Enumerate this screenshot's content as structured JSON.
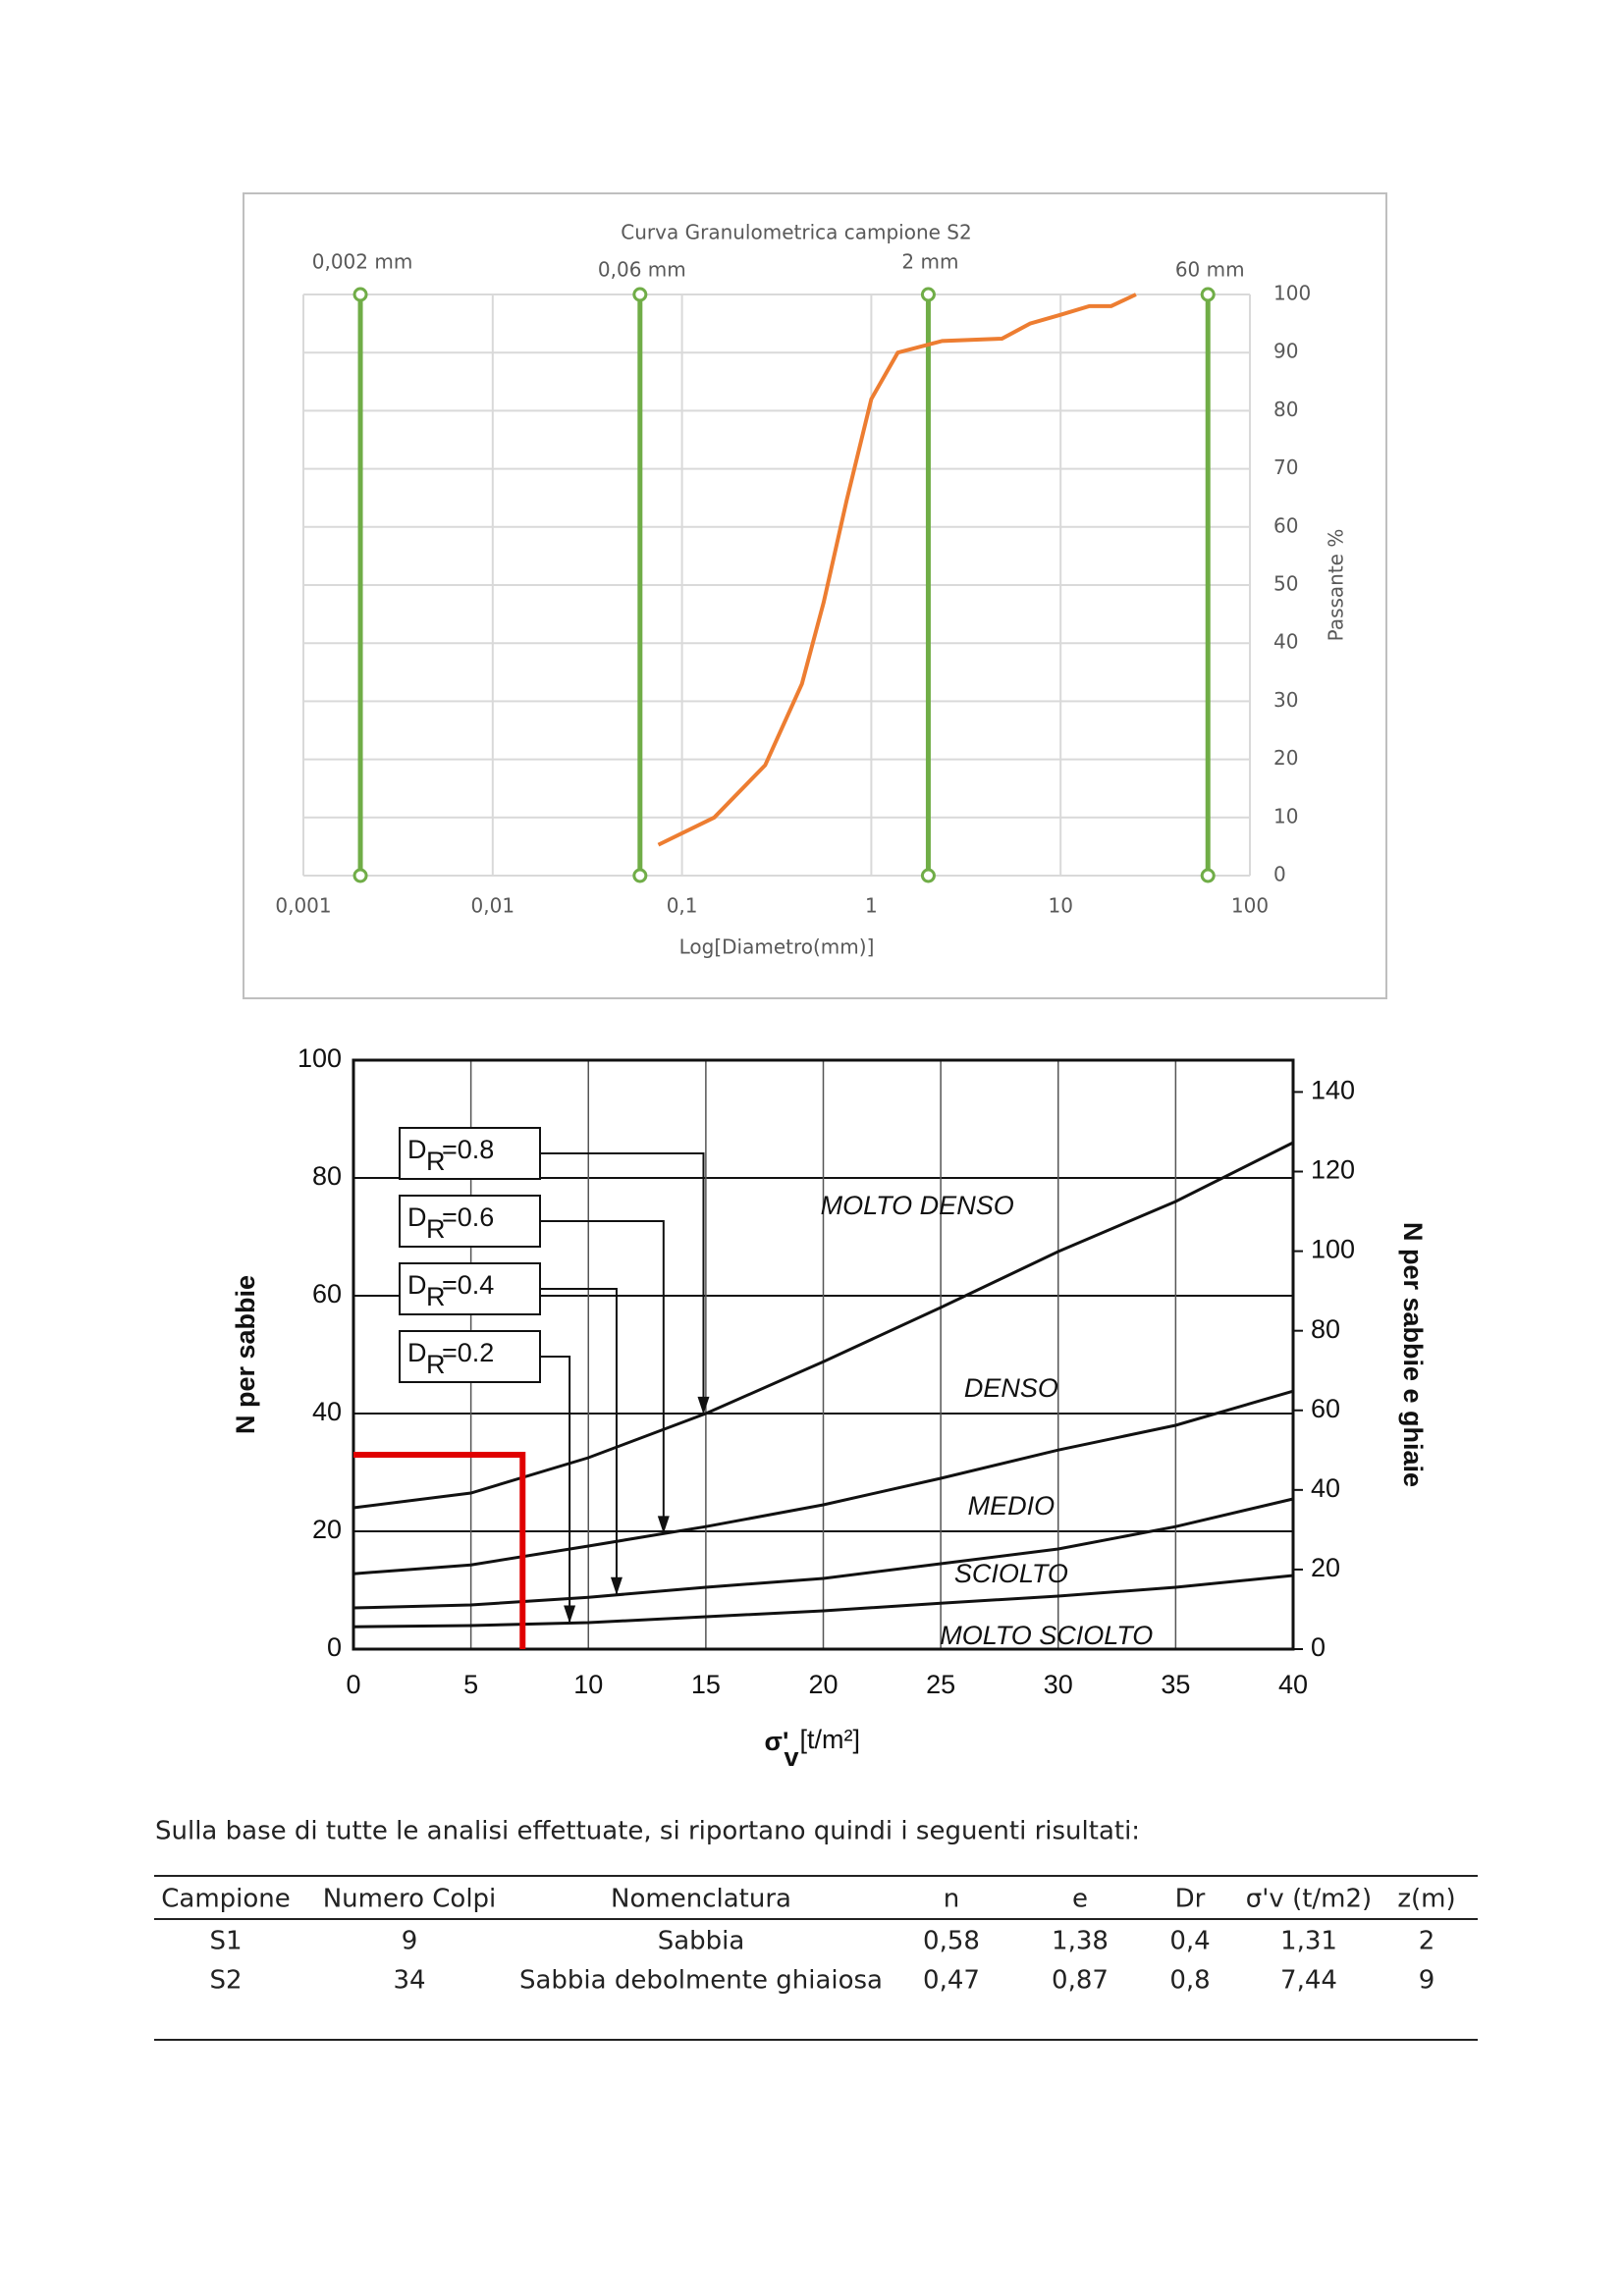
{
  "chart_data": [
    {
      "type": "line",
      "title": "Curva Granulometrica campione S2",
      "x_label": "Log[Diametro(mm)]",
      "y_label": "Passante %",
      "xscale": "log",
      "xlim": [
        0.001,
        100
      ],
      "xticks": [
        {
          "value": 0.001,
          "label": "0,001"
        },
        {
          "value": 0.01,
          "label": "0,01"
        },
        {
          "value": 0.1,
          "label": "0,1"
        },
        1,
        10,
        100
      ],
      "ylim": [
        0,
        100
      ],
      "yticks": [
        0,
        10,
        20,
        30,
        40,
        50,
        60,
        70,
        80,
        90,
        100
      ],
      "y_axis_side": "right",
      "grid": true,
      "series": [
        {
          "color": "#ed7d31",
          "x": [
            0.075,
            0.148,
            0.275,
            0.43,
            0.56,
            0.74,
            1,
            1.38,
            2.37,
            4.9,
            6.9,
            10,
            14.2,
            18.5,
            25
          ],
          "values": [
            5.3,
            10,
            19,
            33,
            47,
            64.5,
            82,
            90,
            92,
            92.4,
            95,
            96.5,
            98,
            98,
            100
          ]
        }
      ],
      "marker_color": "#70ad47",
      "markers": [
        {
          "x": 0.002,
          "label": "0,002 mm"
        },
        {
          "x": 0.06,
          "label": "0,06 mm"
        },
        {
          "x": 2,
          "label": "2 mm"
        },
        {
          "x": 60,
          "label": "60 mm"
        }
      ]
    },
    {
      "type": "line",
      "x_label": "σ'",
      "x_label_sub": "v",
      "x_label_unit": "[t/m²]",
      "y_label": "N per sabbie",
      "y2_label": "N per sabbie e ghiaie",
      "xlim": [
        0,
        40
      ],
      "xticks": [
        0,
        5,
        10,
        15,
        20,
        25,
        30,
        35,
        40
      ],
      "ylim": [
        0,
        100
      ],
      "yticks": [
        0,
        20,
        40,
        60,
        80,
        100
      ],
      "y2lim": [
        0,
        148
      ],
      "y2ticks": [
        0,
        20,
        40,
        60,
        80,
        100,
        120,
        140
      ],
      "grid": true,
      "series": [
        {
          "color": "#111111",
          "x": [
            0,
            5,
            10,
            15,
            20,
            25,
            30,
            35,
            40
          ],
          "values": [
            24,
            26.5,
            32.5,
            40,
            48.8,
            58,
            67.5,
            76,
            86
          ]
        },
        {
          "color": "#111111",
          "x": [
            0,
            5,
            10,
            15,
            20,
            25,
            30,
            35,
            40
          ],
          "values": [
            12.8,
            14.3,
            17.5,
            20.8,
            24.5,
            29,
            33.8,
            38,
            43.8
          ]
        },
        {
          "color": "#111111",
          "x": [
            0,
            5,
            10,
            15,
            20,
            25,
            30,
            35,
            40
          ],
          "values": [
            7,
            7.5,
            8.8,
            10.5,
            12,
            14.5,
            17,
            20.8,
            25.5
          ]
        },
        {
          "color": "#111111",
          "x": [
            0,
            5,
            10,
            15,
            20,
            25,
            30,
            35,
            40
          ],
          "values": [
            3.8,
            4,
            4.5,
            5.5,
            6.5,
            7.8,
            9,
            10.5,
            12.5
          ]
        }
      ],
      "zone_labels": [
        "MOLTO DENSO",
        "DENSO",
        "MEDIO",
        "SCIOLTO",
        "MOLTO SCIOLTO"
      ],
      "dr_labels": [
        {
          "symbol": "D",
          "subscript": "R",
          "text": "=0.8",
          "x": 14.9
        },
        {
          "symbol": "D",
          "subscript": "R",
          "text": "=0.6",
          "x": 13.2
        },
        {
          "symbol": "D",
          "subscript": "R",
          "text": "=0.4",
          "x": 11.2
        },
        {
          "symbol": "D",
          "subscript": "R",
          "text": "=0.2",
          "x": 9.2
        }
      ],
      "highlight": {
        "x": 7.2,
        "y": 33,
        "color": "#e00000"
      }
    }
  ],
  "text": "Sulla base di tutte le analisi effettuate, si riportano quindi i seguenti risultati:",
  "table": {
    "header": [
      "Campione",
      "Numero Colpi",
      "Nomenclatura",
      "n",
      "e",
      "Dr",
      "σ'v (t/m2)",
      "z(m)"
    ],
    "rows": [
      [
        "S1",
        "9",
        "Sabbia",
        "0,58",
        "1,38",
        "0,4",
        "1,31",
        "2"
      ],
      [
        "S2",
        "34",
        "Sabbia debolmente ghiaiosa",
        "0,47",
        "0,87",
        "0,8",
        "7,44",
        "9"
      ]
    ]
  }
}
